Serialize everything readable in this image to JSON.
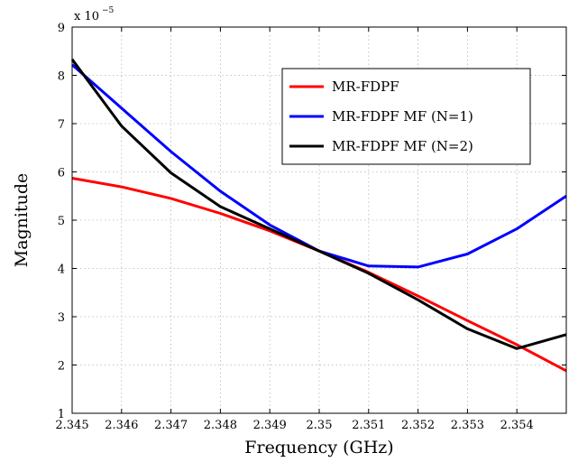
{
  "chart_data": {
    "type": "line",
    "title": "",
    "xlabel": "Frequency (GHz)",
    "ylabel": "Magnitude",
    "exponent_label": {
      "base": "x 10",
      "power": "−5"
    },
    "xlim": [
      2.345,
      2.355
    ],
    "ylim": [
      1,
      9
    ],
    "xticks": [
      2.345,
      2.346,
      2.347,
      2.348,
      2.349,
      2.35,
      2.351,
      2.352,
      2.353,
      2.354
    ],
    "xtick_labels": [
      "2.345",
      "2.346",
      "2.347",
      "2.348",
      "2.349",
      "2.35",
      "2.351",
      "2.352",
      "2.353",
      "2.354"
    ],
    "yticks": [
      1,
      2,
      3,
      4,
      5,
      6,
      7,
      8,
      9
    ],
    "ytick_labels": [
      "1",
      "2",
      "3",
      "4",
      "5",
      "6",
      "7",
      "8",
      "9"
    ],
    "grid": true,
    "legend_position": "top-right",
    "series": [
      {
        "name": "MR-FDPF",
        "color": "#ff0000",
        "x": [
          2.345,
          2.346,
          2.347,
          2.348,
          2.349,
          2.35,
          2.351,
          2.352,
          2.353,
          2.354,
          2.355
        ],
        "y": [
          5.87,
          5.69,
          5.45,
          5.14,
          4.78,
          4.36,
          3.92,
          3.43,
          2.92,
          2.42,
          1.88
        ]
      },
      {
        "name": "MR-FDPF MF (N=1)",
        "color": "#0000ff",
        "x": [
          2.345,
          2.346,
          2.347,
          2.348,
          2.349,
          2.35,
          2.351,
          2.352,
          2.353,
          2.354,
          2.355
        ],
        "y": [
          8.22,
          7.32,
          6.42,
          5.6,
          4.9,
          4.36,
          4.05,
          4.03,
          4.3,
          4.82,
          5.5
        ]
      },
      {
        "name": "MR-FDPF MF (N=2)",
        "color": "#000000",
        "x": [
          2.345,
          2.346,
          2.347,
          2.348,
          2.349,
          2.35,
          2.351,
          2.352,
          2.353,
          2.354,
          2.355
        ],
        "y": [
          8.33,
          6.95,
          5.98,
          5.28,
          4.82,
          4.36,
          3.9,
          3.35,
          2.75,
          2.34,
          2.63
        ]
      }
    ]
  }
}
